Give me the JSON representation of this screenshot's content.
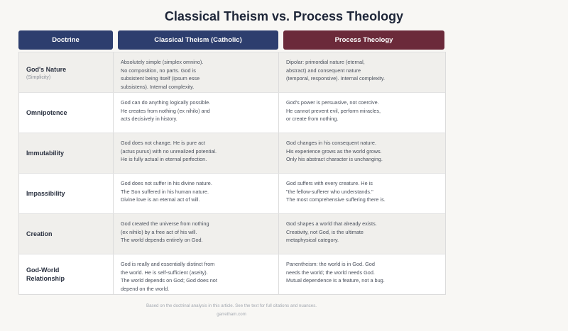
{
  "title": "Classical Theism vs. Process Theology",
  "headers": [
    "Doctrine",
    "Classical Theism (Catholic)",
    "Process Theology"
  ],
  "colors": {
    "classical": "#2d3e6e",
    "process": "#6b2a3a",
    "background": "#f8f7f4"
  },
  "rows": [
    {
      "doctrine": "God's Nature",
      "sub": "(Simplicity)",
      "classical": [
        "Absolutely simple (simplex omnino).",
        "No composition, no parts. God is",
        "subsistent being itself (ipsum esse",
        "subsistens). Internal complexity."
      ],
      "process": [
        "Dipolar: primordial nature (eternal,",
        "abstract) and consequent nature",
        "(temporal, responsive). Internal complexity."
      ]
    },
    {
      "doctrine": "Omnipotence",
      "classical": [
        "God can do anything logically possible.",
        "He creates from nothing (ex nihilo) and",
        "acts decisively in history."
      ],
      "process": [
        "God's power is persuasive, not coercive.",
        "He cannot prevent evil, perform miracles,",
        "or create from nothing."
      ]
    },
    {
      "doctrine": "Immutability",
      "classical": [
        "God does not change. He is pure act",
        "(actus purus) with no unrealized potential.",
        "He is fully actual in eternal perfection."
      ],
      "process": [
        "God changes in his consequent nature.",
        "His experience grows as the world grows.",
        "Only his abstract character is unchanging."
      ]
    },
    {
      "doctrine": "Impassibility",
      "classical": [
        "God does not suffer in his divine nature.",
        "The Son suffered in his human nature.",
        "Divine love is an eternal act of will."
      ],
      "process": [
        "God suffers with every creature. He is",
        "\"the fellow-sufferer who understands.\"",
        "The most comprehensive suffering there is."
      ]
    },
    {
      "doctrine": "Creation",
      "classical": [
        "God created the universe from nothing",
        "(ex nihilo) by a free act of his will.",
        "The world depends entirely on God."
      ],
      "process": [
        "God shapes a world that already exists.",
        "Creativity, not God, is the ultimate",
        "metaphysical category."
      ]
    },
    {
      "doctrine": "God-World Relationship",
      "classical": [
        "God is really and essentially distinct from",
        "the world. He is self-sufficient (aseity).",
        "The world depends on God; God does not",
        "depend on the world."
      ],
      "process": [
        "Panentheism: the world is in God. God",
        "needs the world; the world needs God.",
        "Mutual dependence is a feature, not a bug."
      ]
    }
  ],
  "footer": {
    "note": "Based on the doctrinal analysis in this article. See the text for full citations and nuances.",
    "site": "garretham.com"
  }
}
